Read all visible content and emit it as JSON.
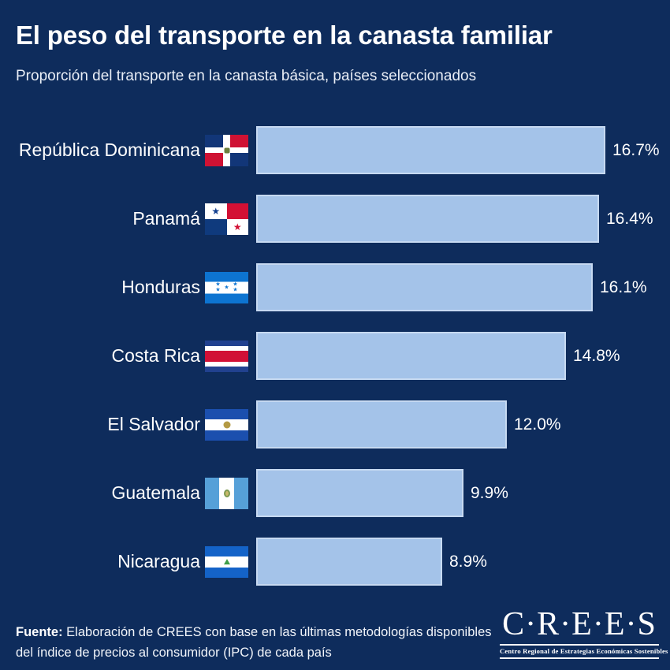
{
  "header": {
    "title": "El peso del transporte en la canasta familiar",
    "subtitle": "Proporción del transporte en la canasta básica, países seleccionados"
  },
  "chart_data": {
    "type": "bar",
    "orientation": "horizontal",
    "title": "El peso del transporte en la canasta familiar",
    "subtitle": "Proporción del transporte en la canasta básica, países seleccionados",
    "categories": [
      "República Dominicana",
      "Panamá",
      "Honduras",
      "Costa Rica",
      "El Salvador",
      "Guatemala",
      "Nicaragua"
    ],
    "values": [
      16.7,
      16.4,
      16.1,
      14.8,
      12.0,
      9.9,
      8.9
    ],
    "value_labels": [
      "16.7%",
      "16.4%",
      "16.1%",
      "14.8%",
      "12.0%",
      "9.9%",
      "8.9%"
    ],
    "unit": "%",
    "xlim": [
      0,
      16.7
    ],
    "grid": false,
    "legend": "none",
    "bar_color": "#a4c3e9",
    "flags": [
      "dominican-republic",
      "panama",
      "honduras",
      "costa-rica",
      "el-salvador",
      "guatemala",
      "nicaragua"
    ]
  },
  "footer": {
    "source_label": "Fuente:",
    "source_text": " Elaboración de CREES con base en las últimas metodologías disponibles del índice de precios al consumidor (IPC) de cada país",
    "logo": {
      "wordmark": "C·R·E·E·S",
      "tagline": "Centro Regional de Estrategias Económicas Sostenibles"
    }
  },
  "colors": {
    "background": "#0e2c5c",
    "bar": "#a4c3e9",
    "bar_border": "#c6d9f1",
    "text": "#ffffff"
  }
}
